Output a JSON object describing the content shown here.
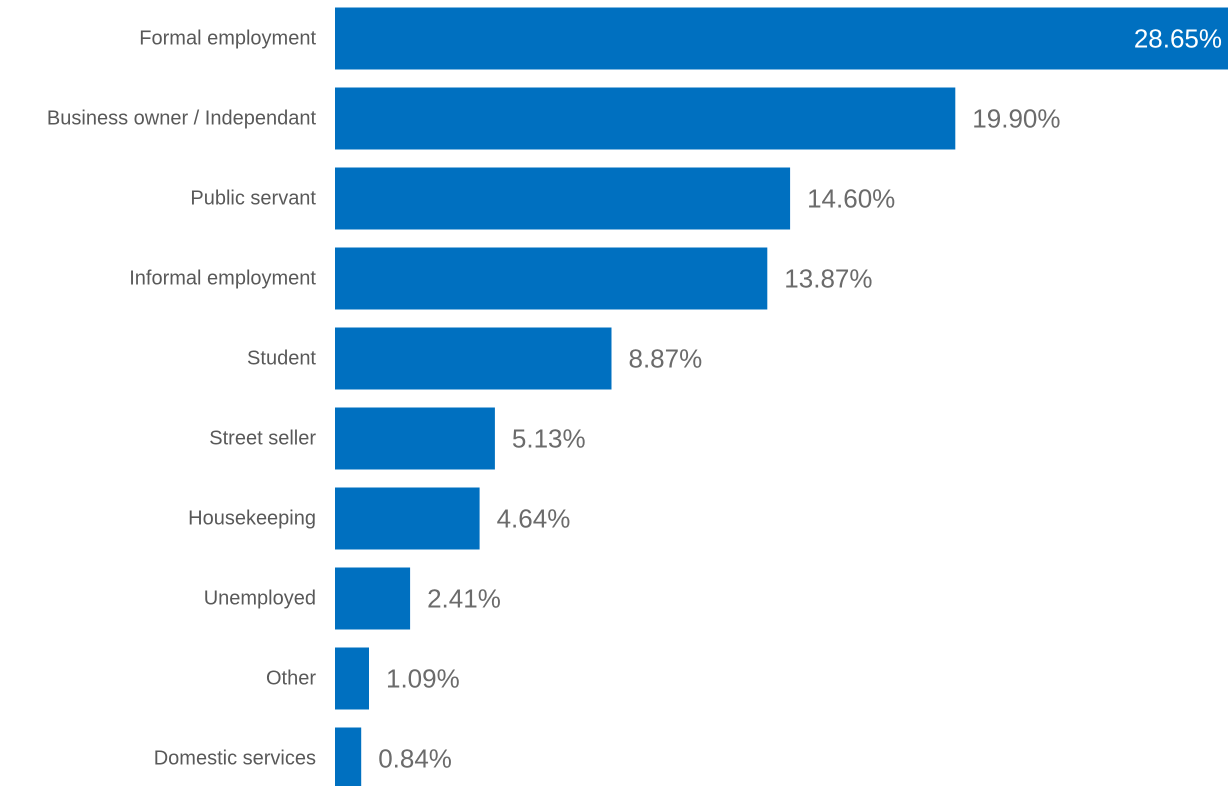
{
  "chart_data": {
    "type": "bar",
    "orientation": "horizontal",
    "categories": [
      "Formal employment",
      "Business owner / Independant",
      "Public servant",
      "Informal employment",
      "Student",
      "Street seller",
      "Housekeeping",
      "Unemployed",
      "Other",
      "Domestic services"
    ],
    "values": [
      28.65,
      19.9,
      14.6,
      13.87,
      8.87,
      5.13,
      4.64,
      2.41,
      1.09,
      0.84
    ],
    "value_labels": [
      "28.65%",
      "19.90%",
      "14.60%",
      "13.87%",
      "8.87%",
      "5.13%",
      "4.64%",
      "2.41%",
      "1.09%",
      "0.84%"
    ],
    "unit": "%",
    "title": "",
    "xlabel": "",
    "ylabel": "",
    "xlim": [
      0,
      28.65
    ],
    "grid": false,
    "legend": "none",
    "colors": {
      "bar": "#0070C0",
      "category_text": "#595959",
      "value_text": "#6b6b6b",
      "value_text_inside": "#ffffff"
    }
  }
}
